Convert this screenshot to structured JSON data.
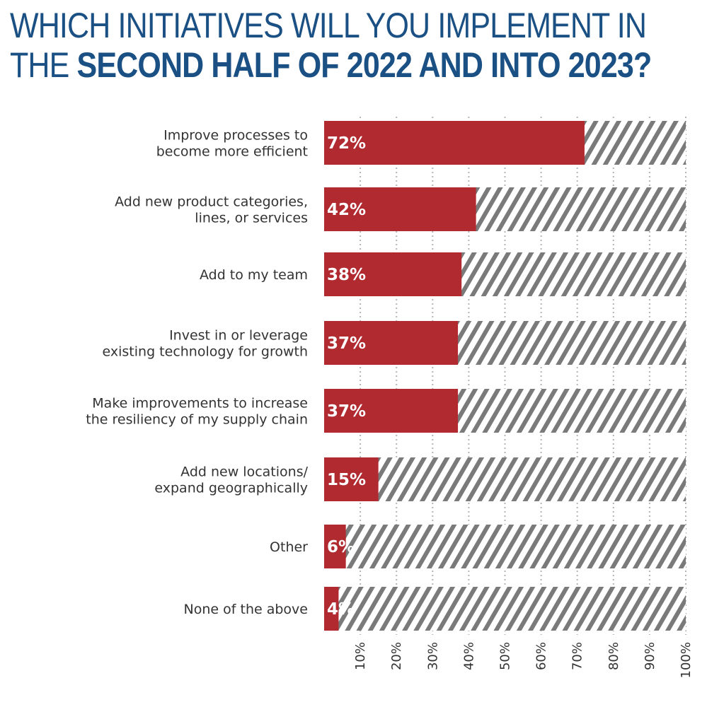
{
  "title": {
    "line1": "WHICH INITIATIVES WILL YOU IMPLEMENT IN",
    "line2_prefix": "THE ",
    "line2_bold": "SECOND HALF OF 2022 AND INTO 2023?"
  },
  "colors": {
    "title": "#1a5083",
    "bar": "#b02a30",
    "stripe": "#7a7a7a",
    "grid": "#b5b5b5",
    "text": "#333333"
  },
  "chart_data": {
    "type": "bar",
    "orientation": "horizontal",
    "categories": [
      [
        "Improve processes to",
        "become more efficient"
      ],
      [
        "Add new product categories,",
        "lines, or services"
      ],
      [
        "Add to my team"
      ],
      [
        "Invest in or leverage",
        "existing technology for growth"
      ],
      [
        "Make improvements to increase",
        "the resiliency of my supply chain"
      ],
      [
        "Add new locations/",
        "expand geographically"
      ],
      [
        "Other"
      ],
      [
        "None of the above"
      ]
    ],
    "values": [
      72,
      42,
      38,
      37,
      37,
      15,
      6,
      4
    ],
    "value_labels": [
      "72%",
      "42%",
      "38%",
      "37%",
      "37%",
      "15%",
      "6%",
      "4%"
    ],
    "xlim": [
      0,
      100
    ],
    "xticks": [
      "10%",
      "20%",
      "30%",
      "40%",
      "50%",
      "60%",
      "70%",
      "80%",
      "90%",
      "100%"
    ],
    "grid": "vertical dotted"
  }
}
